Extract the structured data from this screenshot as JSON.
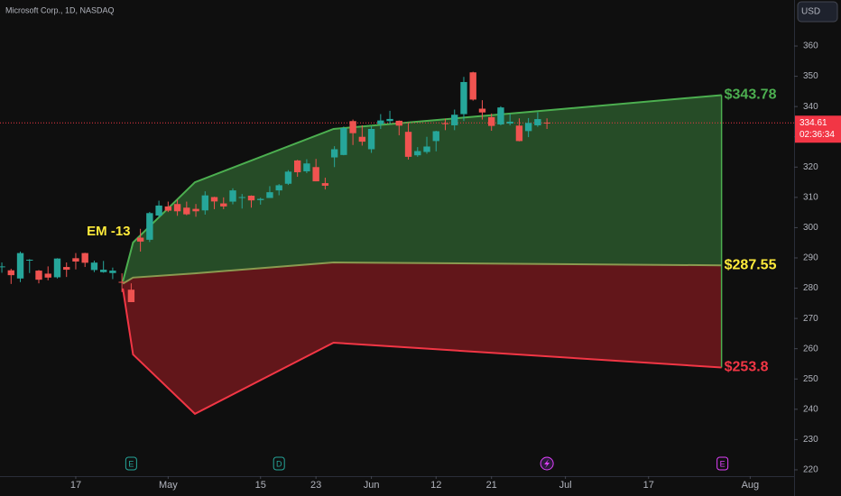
{
  "chart_data": {
    "type": "candlestick",
    "title": "Microsoft Corp., 1D, NASDAQ",
    "currency": "USD",
    "up_color": "#26a69a",
    "down_color": "#ef5350",
    "x": [
      0,
      1,
      2,
      3,
      4,
      5,
      6,
      7,
      8,
      9,
      10,
      11,
      12,
      13,
      14,
      15,
      16,
      17,
      18,
      19,
      20,
      21,
      22,
      23,
      24,
      25,
      26,
      27,
      28,
      29,
      30,
      31,
      32,
      33,
      34,
      35,
      36,
      37,
      38,
      39,
      40,
      41,
      42,
      43,
      44,
      45,
      46,
      47,
      48,
      49,
      50,
      51,
      52,
      53,
      54,
      55,
      56,
      57,
      58,
      59
    ],
    "open": [
      287.2,
      285.9,
      283.2,
      289.2,
      285.8,
      284.8,
      283.6,
      287.0,
      289.9,
      291.6,
      286.0,
      285.3,
      285.0,
      282.1,
      279.5,
      296.7,
      296.0,
      304.0,
      307.0,
      307.8,
      306.6,
      306.2,
      305.7,
      310.1,
      308.0,
      308.6,
      310.1,
      310.55,
      309.1,
      309.8,
      312.3,
      314.5,
      322.2,
      318.6,
      320.0,
      314.7,
      323.2,
      324.0,
      335.2,
      330.0,
      325.9,
      334.2,
      335.2,
      335.3,
      331.65,
      323.9,
      325.0,
      328.6,
      334.5,
      333.8,
      337.5,
      351.3,
      339.3,
      336.5,
      334.1,
      334.4,
      333.7,
      331.9,
      333.8,
      334.7
    ],
    "high": [
      288.5,
      286.4,
      292.1,
      289.6,
      286.0,
      287.2,
      289.9,
      288.5,
      291.6,
      291.7,
      289.1,
      289.0,
      286.8,
      284.9,
      281.6,
      299.6,
      305.2,
      308.9,
      308.6,
      309.2,
      308.6,
      307.8,
      312.0,
      310.2,
      310.0,
      313.0,
      311.1,
      310.65,
      309.9,
      313.7,
      314.4,
      319.0,
      322.4,
      322.6,
      322.7,
      316.5,
      326.9,
      333.4,
      335.7,
      333.8,
      333.5,
      337.5,
      338.6,
      335.4,
      334.5,
      326.6,
      330.0,
      332.0,
      336.0,
      339.0,
      349.8,
      351.5,
      342.1,
      337.7,
      340.1,
      337.6,
      336.1,
      336.2,
      338.1,
      336.1
    ],
    "low": [
      285.1,
      281.4,
      282.0,
      285.0,
      281.6,
      282.6,
      283.2,
      283.7,
      286.2,
      287.0,
      285.3,
      285.1,
      283.0,
      278.7,
      275.4,
      292.1,
      295.25,
      303.3,
      305.15,
      303.9,
      304.1,
      303.6,
      304.3,
      306.1,
      306.1,
      307.7,
      306.3,
      306.6,
      307.6,
      309.8,
      310.7,
      314.1,
      316.8,
      318.0,
      315.3,
      312.6,
      320.0,
      323.9,
      327.3,
      327.1,
      324.7,
      332.6,
      334.2,
      330.5,
      322.5,
      323.4,
      324.4,
      325.2,
      332.2,
      332.2,
      335.2,
      341.95,
      335.7,
      332.0,
      333.8,
      333.8,
      328.5,
      329.9,
      333.3,
      332.6
    ],
    "close": [
      287.2,
      284.3,
      291.6,
      289.4,
      282.8,
      283.5,
      289.8,
      286.1,
      288.8,
      288.4,
      288.45,
      286.1,
      285.8,
      281.8,
      275.4,
      295.4,
      304.8,
      307.3,
      305.6,
      305.4,
      304.4,
      305.4,
      310.65,
      308.65,
      307.0,
      312.3,
      310.1,
      309.0,
      309.5,
      311.7,
      314.0,
      318.5,
      318.3,
      321.2,
      315.3,
      313.85,
      325.9,
      332.9,
      331.2,
      328.4,
      332.6,
      335.4,
      335.9,
      333.7,
      323.4,
      325.3,
      326.8,
      331.85,
      334.3,
      337.3,
      348.1,
      342.3,
      338.05,
      333.6,
      339.7,
      335.0,
      328.6,
      334.6,
      335.85,
      334.61
    ],
    "xlim": [
      -0.2,
      85.75
    ],
    "xticks": [
      {
        "value": 8,
        "label": "17"
      },
      {
        "value": 18,
        "label": "May"
      },
      {
        "value": 28,
        "label": "15"
      },
      {
        "value": 34,
        "label": "23"
      },
      {
        "value": 40,
        "label": "Jun"
      },
      {
        "value": 47,
        "label": "12"
      },
      {
        "value": 53,
        "label": "21"
      },
      {
        "value": 61,
        "label": "Jul"
      },
      {
        "value": 70,
        "label": "17"
      },
      {
        "value": 81,
        "label": "Aug"
      }
    ],
    "ylim": [
      217.9,
      375.2
    ],
    "yticks": [
      220,
      230,
      240,
      250,
      260,
      270,
      280,
      290,
      300,
      310,
      320,
      330,
      340,
      350,
      360
    ],
    "last_price": 334.61,
    "countdown": "02:36:34",
    "expected_move": {
      "label": "EM -13",
      "x": [
        13.1,
        14.2,
        20.9,
        35.9,
        77.9
      ],
      "upper": [
        282.25,
        295.1,
        315.0,
        332.6,
        343.78
      ],
      "mid": [
        281.5,
        283.5,
        284.9,
        288.5,
        287.55
      ],
      "lower": [
        279.9,
        258.1,
        238.5,
        262.0,
        253.8
      ],
      "end_labels": [
        {
          "value": 343.78,
          "label": "$343.78",
          "color": "#4caf50"
        },
        {
          "value": 287.55,
          "label": "$287.55",
          "color": "#ffeb3b"
        },
        {
          "value": 253.8,
          "label": "$253.8",
          "color": "#f23645"
        }
      ]
    },
    "events": [
      {
        "x": 14,
        "label": "E"
      },
      {
        "x": 30,
        "label": "D"
      },
      {
        "x": 59
      },
      {
        "x": 78,
        "label": "E"
      }
    ]
  }
}
